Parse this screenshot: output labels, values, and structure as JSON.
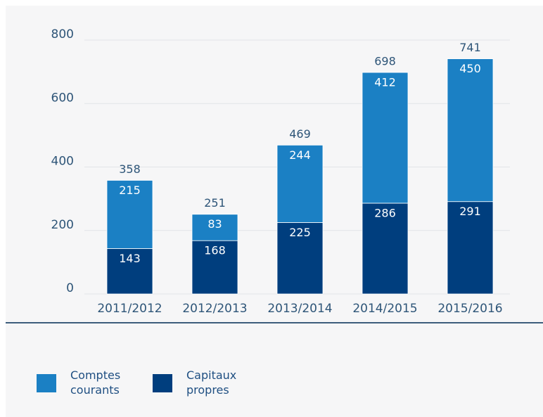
{
  "chart_data": {
    "type": "stacked_bar",
    "categories": [
      "2011/2012",
      "2012/2013",
      "2013/2014",
      "2014/2015",
      "2015/2016"
    ],
    "series": [
      {
        "name": "Capitaux propres",
        "color": "#003e7e",
        "values": [
          143,
          168,
          225,
          286,
          291
        ]
      },
      {
        "name": "Comptes courants",
        "color": "#1b80c4",
        "values": [
          215,
          83,
          244,
          412,
          450
        ]
      }
    ],
    "totals": [
      358,
      251,
      469,
      698,
      741
    ],
    "ylim": [
      0,
      800
    ],
    "yticks": [
      0,
      200,
      400,
      600,
      800
    ],
    "grid": true
  }
}
